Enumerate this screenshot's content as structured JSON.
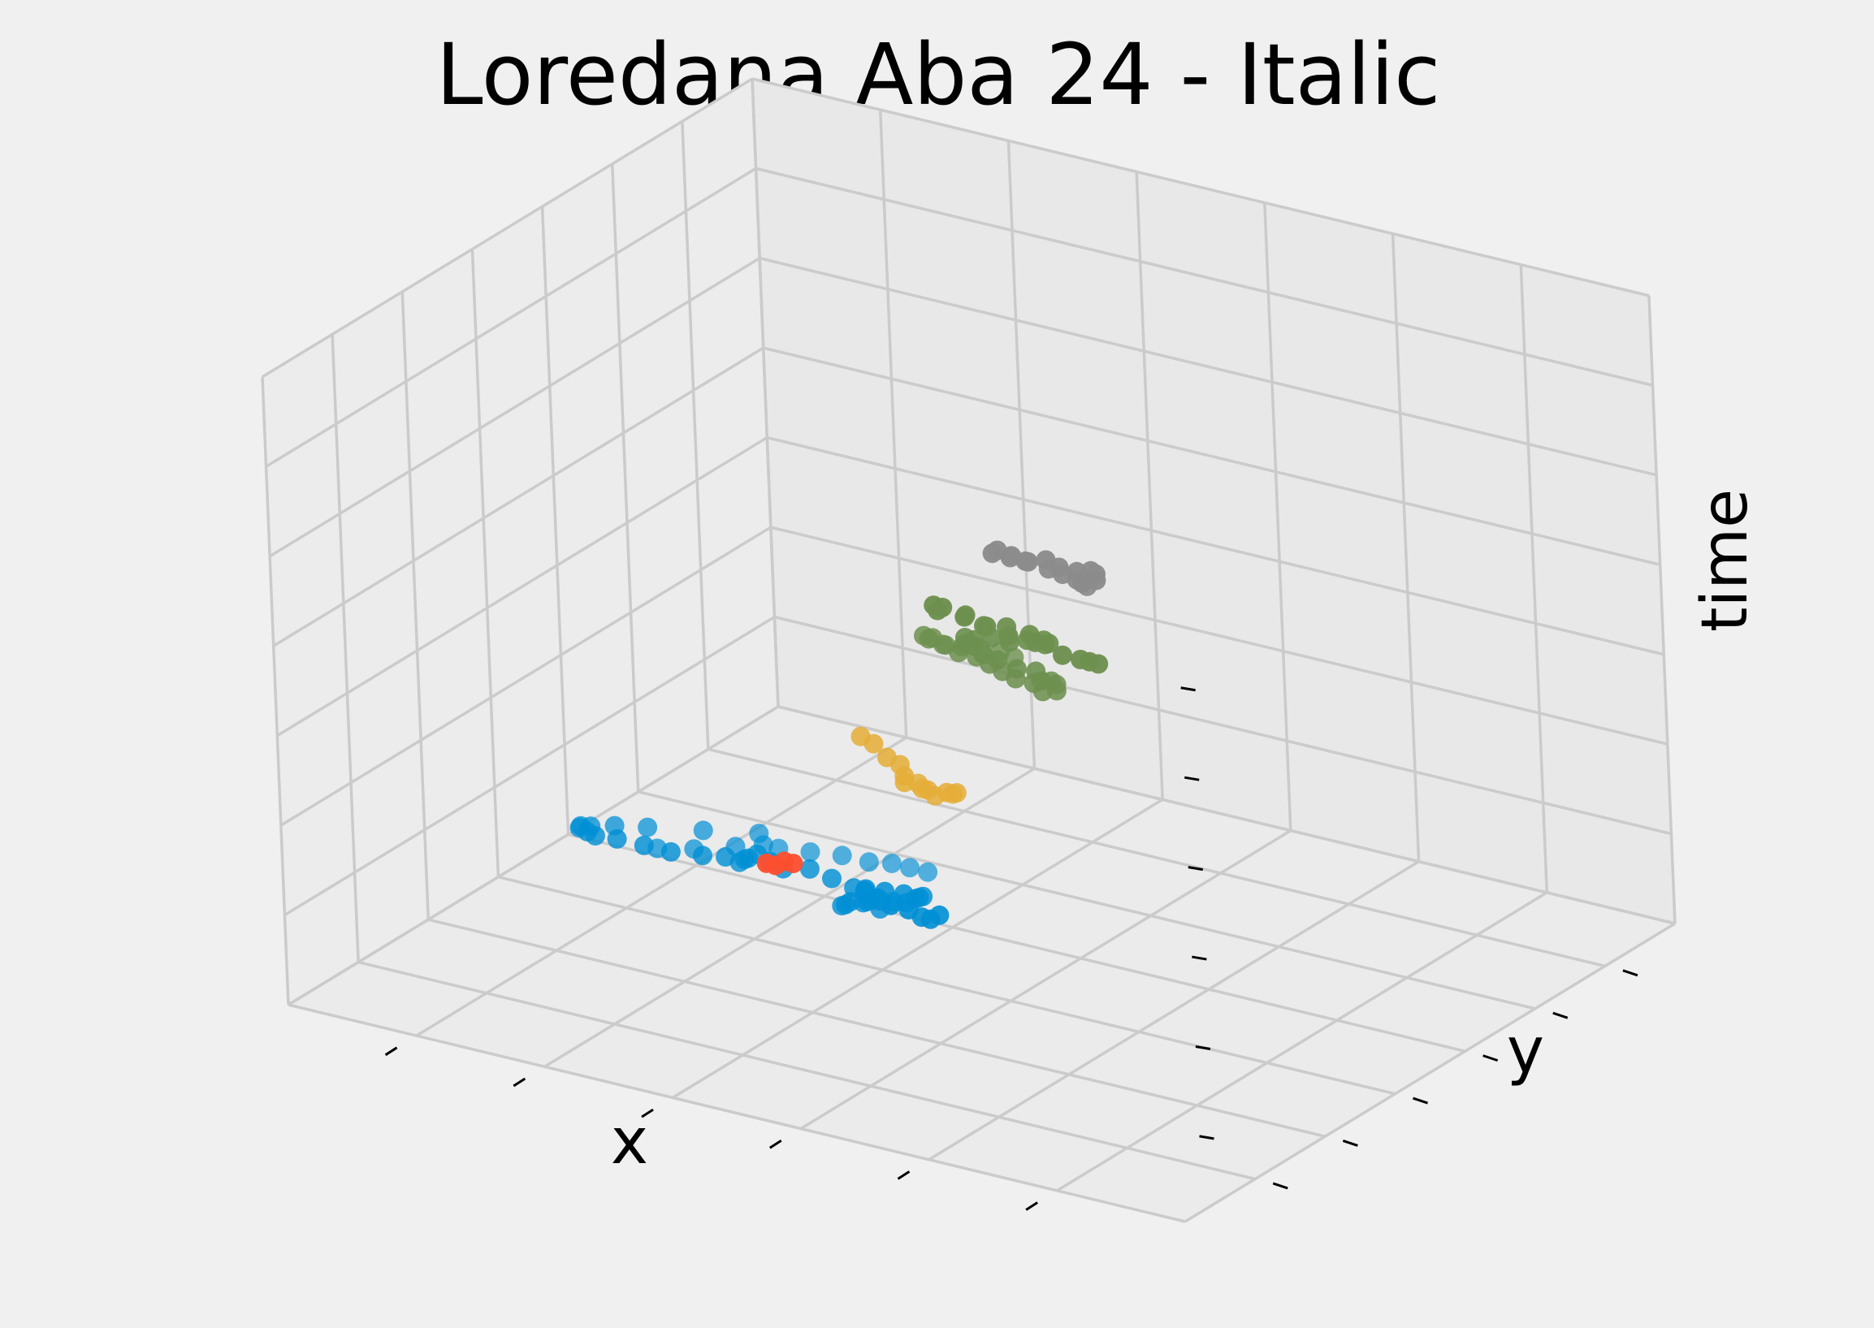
{
  "chart_data": {
    "type": "scatter",
    "projection": "3d",
    "title": "Loredana Aba 24 - Italic",
    "xlabel": "x",
    "ylabel": "y",
    "zlabel": "time",
    "grid": true,
    "tick_labels_shown": false,
    "series": [
      {
        "color": "#008fd5",
        "points": [
          [
            0.22,
            0.6,
            0.04
          ],
          [
            0.25,
            0.61,
            0.04
          ],
          [
            0.28,
            0.62,
            0.04
          ],
          [
            0.31,
            0.62,
            0.04
          ],
          [
            0.33,
            0.63,
            0.04
          ],
          [
            0.35,
            0.63,
            0.04
          ],
          [
            0.37,
            0.63,
            0.04
          ],
          [
            0.14,
            0.5,
            0.06
          ],
          [
            0.17,
            0.52,
            0.06
          ],
          [
            0.2,
            0.55,
            0.06
          ],
          [
            0.22,
            0.57,
            0.06
          ],
          [
            0.21,
            0.58,
            0.07
          ],
          [
            0.17,
            0.54,
            0.08
          ],
          [
            0.13,
            0.5,
            0.09
          ],
          [
            0.11,
            0.47,
            0.1
          ],
          [
            0.1,
            0.44,
            0.11
          ],
          [
            0.1,
            0.42,
            0.12
          ],
          [
            0.11,
            0.4,
            0.13
          ],
          [
            0.13,
            0.38,
            0.14
          ],
          [
            0.15,
            0.36,
            0.15
          ],
          [
            0.18,
            0.35,
            0.16
          ],
          [
            0.21,
            0.35,
            0.16
          ],
          [
            0.24,
            0.35,
            0.16
          ],
          [
            0.27,
            0.36,
            0.16
          ],
          [
            0.29,
            0.37,
            0.16
          ],
          [
            0.3,
            0.38,
            0.15
          ],
          [
            0.3,
            0.39,
            0.15
          ],
          [
            0.31,
            0.38,
            0.16
          ],
          [
            0.32,
            0.38,
            0.17
          ],
          [
            0.34,
            0.37,
            0.17
          ],
          [
            0.36,
            0.36,
            0.17
          ],
          [
            0.39,
            0.36,
            0.18
          ],
          [
            0.42,
            0.35,
            0.18
          ],
          [
            0.45,
            0.34,
            0.18
          ],
          [
            0.47,
            0.33,
            0.18
          ],
          [
            0.48,
            0.32,
            0.18
          ],
          [
            0.49,
            0.32,
            0.17
          ],
          [
            0.47,
            0.33,
            0.17
          ],
          [
            0.44,
            0.34,
            0.15
          ],
          [
            0.43,
            0.35,
            0.14
          ],
          [
            0.44,
            0.35,
            0.15
          ],
          [
            0.46,
            0.34,
            0.16
          ],
          [
            0.48,
            0.34,
            0.17
          ],
          [
            0.5,
            0.33,
            0.18
          ],
          [
            0.52,
            0.32,
            0.19
          ],
          [
            0.53,
            0.32,
            0.2
          ],
          [
            0.54,
            0.31,
            0.21
          ],
          [
            0.55,
            0.3,
            0.22
          ],
          [
            0.54,
            0.28,
            0.23
          ],
          [
            0.53,
            0.26,
            0.24
          ],
          [
            0.52,
            0.24,
            0.25
          ],
          [
            0.53,
            0.22,
            0.26
          ],
          [
            0.55,
            0.21,
            0.26
          ],
          [
            0.57,
            0.2,
            0.26
          ],
          [
            0.59,
            0.2,
            0.26
          ],
          [
            0.61,
            0.19,
            0.26
          ],
          [
            0.62,
            0.19,
            0.26
          ],
          [
            0.63,
            0.19,
            0.27
          ]
        ]
      },
      {
        "color": "#fc4f30",
        "points": [
          [
            0.5,
            0.08,
            0.36
          ],
          [
            0.51,
            0.08,
            0.36
          ],
          [
            0.52,
            0.08,
            0.37
          ],
          [
            0.53,
            0.08,
            0.37
          ]
        ]
      },
      {
        "color": "#e5ae38",
        "points": [
          [
            0.51,
            0.26,
            0.48
          ],
          [
            0.53,
            0.25,
            0.48
          ],
          [
            0.55,
            0.24,
            0.47
          ],
          [
            0.57,
            0.23,
            0.47
          ],
          [
            0.58,
            0.22,
            0.46
          ],
          [
            0.58,
            0.22,
            0.45
          ],
          [
            0.6,
            0.23,
            0.44
          ],
          [
            0.61,
            0.25,
            0.43
          ],
          [
            0.61,
            0.27,
            0.42
          ],
          [
            0.6,
            0.28,
            0.41
          ],
          [
            0.58,
            0.28,
            0.4
          ],
          [
            0.56,
            0.29,
            0.4
          ],
          [
            0.55,
            0.3,
            0.4
          ]
        ]
      },
      {
        "color": "#6d904f",
        "points": [
          [
            0.63,
            0.36,
            0.6
          ],
          [
            0.62,
            0.35,
            0.61
          ],
          [
            0.61,
            0.33,
            0.62
          ],
          [
            0.6,
            0.31,
            0.63
          ],
          [
            0.59,
            0.29,
            0.64
          ],
          [
            0.58,
            0.28,
            0.65
          ],
          [
            0.58,
            0.27,
            0.66
          ],
          [
            0.59,
            0.27,
            0.66
          ],
          [
            0.61,
            0.26,
            0.66
          ],
          [
            0.63,
            0.25,
            0.66
          ],
          [
            0.65,
            0.25,
            0.66
          ],
          [
            0.67,
            0.24,
            0.66
          ],
          [
            0.69,
            0.23,
            0.66
          ],
          [
            0.71,
            0.22,
            0.66
          ],
          [
            0.73,
            0.22,
            0.66
          ],
          [
            0.74,
            0.22,
            0.65
          ],
          [
            0.75,
            0.23,
            0.65
          ],
          [
            0.75,
            0.23,
            0.66
          ],
          [
            0.75,
            0.22,
            0.67
          ],
          [
            0.75,
            0.2,
            0.68
          ],
          [
            0.75,
            0.19,
            0.7
          ],
          [
            0.74,
            0.17,
            0.71
          ],
          [
            0.73,
            0.15,
            0.73
          ],
          [
            0.72,
            0.14,
            0.74
          ],
          [
            0.71,
            0.14,
            0.75
          ],
          [
            0.7,
            0.14,
            0.75
          ],
          [
            0.7,
            0.14,
            0.76
          ],
          [
            0.71,
            0.14,
            0.76
          ],
          [
            0.73,
            0.14,
            0.77
          ],
          [
            0.75,
            0.14,
            0.77
          ],
          [
            0.77,
            0.14,
            0.78
          ],
          [
            0.79,
            0.14,
            0.78
          ],
          [
            0.8,
            0.13,
            0.79
          ],
          [
            0.8,
            0.12,
            0.8
          ],
          [
            0.79,
            0.11,
            0.81
          ],
          [
            0.77,
            0.1,
            0.82
          ],
          [
            0.75,
            0.09,
            0.82
          ],
          [
            0.73,
            0.09,
            0.83
          ],
          [
            0.71,
            0.08,
            0.84
          ],
          [
            0.7,
            0.08,
            0.84
          ],
          [
            0.71,
            0.07,
            0.84
          ],
          [
            0.74,
            0.07,
            0.84
          ],
          [
            0.77,
            0.06,
            0.84
          ],
          [
            0.8,
            0.05,
            0.84
          ],
          [
            0.83,
            0.05,
            0.84
          ],
          [
            0.86,
            0.05,
            0.83
          ],
          [
            0.88,
            0.05,
            0.83
          ],
          [
            0.89,
            0.05,
            0.83
          ],
          [
            0.9,
            0.05,
            0.83
          ]
        ]
      },
      {
        "color": "#8b8b8b",
        "points": [
          [
            0.84,
            0.14,
            0.89
          ],
          [
            0.84,
            0.13,
            0.9
          ],
          [
            0.84,
            0.12,
            0.91
          ],
          [
            0.83,
            0.11,
            0.92
          ],
          [
            0.82,
            0.1,
            0.93
          ],
          [
            0.8,
            0.09,
            0.94
          ],
          [
            0.79,
            0.08,
            0.95
          ],
          [
            0.78,
            0.07,
            0.96
          ],
          [
            0.78,
            0.06,
            0.96
          ],
          [
            0.8,
            0.06,
            0.96
          ],
          [
            0.82,
            0.06,
            0.96
          ],
          [
            0.84,
            0.06,
            0.97
          ],
          [
            0.86,
            0.05,
            0.97
          ],
          [
            0.88,
            0.05,
            0.97
          ],
          [
            0.89,
            0.06,
            0.97
          ],
          [
            0.89,
            0.07,
            0.96
          ],
          [
            0.89,
            0.07,
            0.95
          ]
        ]
      }
    ]
  }
}
